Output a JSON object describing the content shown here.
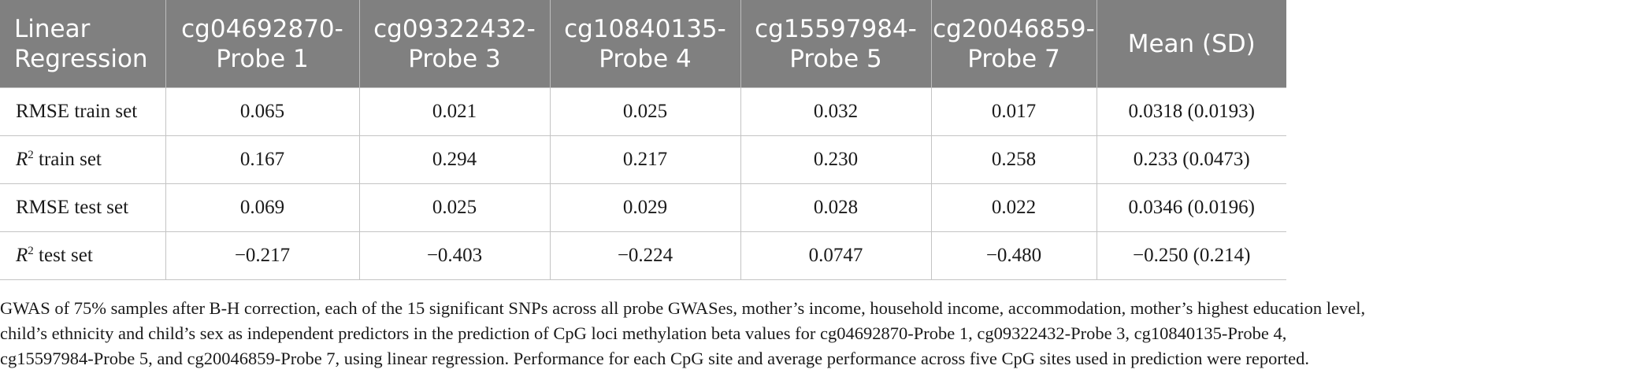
{
  "table": {
    "headers": [
      [
        "Linear",
        "Regression"
      ],
      [
        "cg04692870-",
        "Probe 1"
      ],
      [
        "cg09322432-",
        "Probe 3"
      ],
      [
        "cg10840135-",
        "Probe 4"
      ],
      [
        "cg15597984-",
        "Probe 5"
      ],
      [
        "cg20046859-",
        "Probe 7"
      ],
      [
        "Mean (SD)"
      ]
    ],
    "rows": [
      {
        "label": "RMSE train set",
        "values": [
          "0.065",
          "0.021",
          "0.025",
          "0.032",
          "0.017",
          "0.0318 (0.0193)"
        ]
      },
      {
        "label_symbol": "R",
        "label_sup": "2",
        "label_rest": " train set",
        "values": [
          "0.167",
          "0.294",
          "0.217",
          "0.230",
          "0.258",
          "0.233 (0.0473)"
        ]
      },
      {
        "label": "RMSE test set",
        "values": [
          "0.069",
          "0.025",
          "0.029",
          "0.028",
          "0.022",
          "0.0346 (0.0196)"
        ]
      },
      {
        "label_symbol": "R",
        "label_sup": "2",
        "label_rest": " test set",
        "values": [
          "−0.217",
          "−0.403",
          "−0.224",
          "0.0747",
          "−0.480",
          "−0.250 (0.214)"
        ]
      }
    ]
  },
  "caption": {
    "lines": [
      "GWAS of 75% samples after B-H correction, each of the 15 significant SNPs across all probe GWASes, mother’s income, household income, accommodation, mother’s highest education level,",
      "child’s ethnicity and child’s sex as independent predictors in the prediction of CpG loci methylation beta values for cg04692870-Probe 1, cg09322432-Probe 3, cg10840135-Probe 4,",
      "cg15597984-Probe 5, and cg20046859-Probe 7, using linear regression. Performance for each CpG site and average performance across five CpG sites used in prediction were reported."
    ]
  }
}
